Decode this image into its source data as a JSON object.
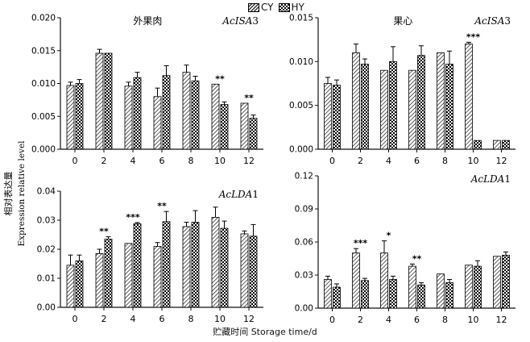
{
  "legend": {
    "cy": "CY",
    "hy": "HY"
  },
  "y_axis_label_cn": "相对表达量",
  "y_axis_label_en": "Expression relative level",
  "x_axis_label_cn": "贮藏时间",
  "x_axis_label_en": "Storage time/d",
  "colors": {
    "axis": "#111111",
    "bar_fill": "#ffffff",
    "bar_stroke": "#000000"
  },
  "chart_data": [
    {
      "type": "bar",
      "panel": "top-left",
      "title_cn": "外果肉",
      "gene": "AcISA3",
      "categories": [
        "0",
        "2",
        "4",
        "6",
        "8",
        "10",
        "12"
      ],
      "ylim": [
        0,
        0.02
      ],
      "yticks": [
        "0.000",
        "0.005",
        "0.010",
        "0.015",
        "0.020"
      ],
      "series": [
        {
          "name": "CY",
          "values": [
            0.0097,
            0.0146,
            0.0096,
            0.008,
            0.0117,
            0.0099,
            0.007
          ],
          "errors": [
            0.0005,
            0.0006,
            0.0006,
            0.0013,
            0.0011,
            0.0,
            0.0
          ]
        },
        {
          "name": "HY",
          "values": [
            0.01,
            0.0146,
            0.0109,
            0.0112,
            0.0104,
            0.0068,
            0.0047
          ],
          "errors": [
            0.0006,
            0.0,
            0.0008,
            0.0015,
            0.0007,
            0.0004,
            0.0005
          ]
        }
      ],
      "significance": [
        "",
        "",
        "",
        "",
        "",
        "**",
        "**"
      ]
    },
    {
      "type": "bar",
      "panel": "top-right",
      "title_cn": "果心",
      "gene": "AcISA3",
      "categories": [
        "0",
        "2",
        "4",
        "6",
        "8",
        "10",
        "12"
      ],
      "ylim": [
        0,
        0.015
      ],
      "yticks": [
        "0.000",
        "0.005",
        "0.010",
        "0.015"
      ],
      "series": [
        {
          "name": "CY",
          "values": [
            0.0075,
            0.011,
            0.009,
            0.009,
            0.011,
            0.012,
            0.001
          ],
          "errors": [
            0.0007,
            0.001,
            0.0,
            0.0,
            0.0,
            0.0002,
            0.0
          ]
        },
        {
          "name": "HY",
          "values": [
            0.0073,
            0.0097,
            0.01,
            0.0107,
            0.0097,
            0.001,
            0.001
          ],
          "errors": [
            0.0006,
            0.0006,
            0.0017,
            0.0011,
            0.0015,
            0.0,
            0.0
          ]
        }
      ],
      "significance": [
        "",
        "",
        "",
        "",
        "",
        "***",
        ""
      ]
    },
    {
      "type": "bar",
      "panel": "bottom-left",
      "title_cn": "",
      "gene": "AcLDA1",
      "categories": [
        "0",
        "2",
        "4",
        "6",
        "8",
        "10",
        "12"
      ],
      "ylim": [
        0,
        0.04
      ],
      "yticks": [
        "0.00",
        "0.01",
        "0.02",
        "0.03",
        "0.04"
      ],
      "series": [
        {
          "name": "CY",
          "values": [
            0.0145,
            0.0185,
            0.022,
            0.021,
            0.0278,
            0.031,
            0.0253
          ],
          "errors": [
            0.0035,
            0.0015,
            0.0,
            0.0013,
            0.0015,
            0.0035,
            0.001
          ]
        },
        {
          "name": "HY",
          "values": [
            0.016,
            0.0235,
            0.0288,
            0.0295,
            0.0293,
            0.0272,
            0.0245
          ],
          "errors": [
            0.002,
            0.0008,
            0.0004,
            0.0035,
            0.004,
            0.0025,
            0.004
          ]
        }
      ],
      "significance": [
        "",
        "**",
        "***",
        "**",
        "",
        "",
        ""
      ]
    },
    {
      "type": "bar",
      "panel": "bottom-right",
      "title_cn": "",
      "gene": "AcLDA1",
      "categories": [
        "0",
        "2",
        "4",
        "6",
        "8",
        "10",
        "12"
      ],
      "ylim": [
        0,
        0.12
      ],
      "yticks": [
        "0.00",
        "0.03",
        "0.06",
        "0.09",
        "0.12"
      ],
      "series": [
        {
          "name": "CY",
          "values": [
            0.026,
            0.05,
            0.05,
            0.038,
            0.031,
            0.039,
            0.047
          ],
          "errors": [
            0.003,
            0.004,
            0.011,
            0.002,
            0.0,
            0.0,
            0.0
          ]
        },
        {
          "name": "HY",
          "values": [
            0.019,
            0.025,
            0.026,
            0.021,
            0.023,
            0.038,
            0.048
          ],
          "errors": [
            0.003,
            0.002,
            0.003,
            0.002,
            0.003,
            0.005,
            0.003
          ]
        }
      ],
      "significance": [
        "",
        "***",
        "*",
        "**",
        "",
        "",
        ""
      ]
    }
  ]
}
